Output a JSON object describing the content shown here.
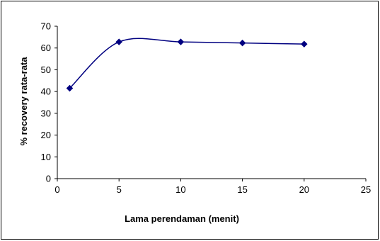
{
  "chart_data": {
    "type": "line",
    "title": "",
    "xlabel": "Lama perendaman (menit)",
    "ylabel": "% recovery rata-rata",
    "xlim": [
      0,
      25
    ],
    "ylim": [
      0,
      70
    ],
    "xticks": [
      0,
      5,
      10,
      15,
      20,
      25
    ],
    "yticks": [
      0,
      10,
      20,
      30,
      40,
      50,
      60,
      70
    ],
    "grid": false,
    "legend": "none",
    "smoothed": true,
    "series": [
      {
        "x": [
          1,
          5,
          10,
          15,
          20
        ],
        "y": [
          41.5,
          62.8,
          62.8,
          62.3,
          61.8
        ],
        "color": "#000080",
        "marker": "diamond"
      }
    ]
  }
}
